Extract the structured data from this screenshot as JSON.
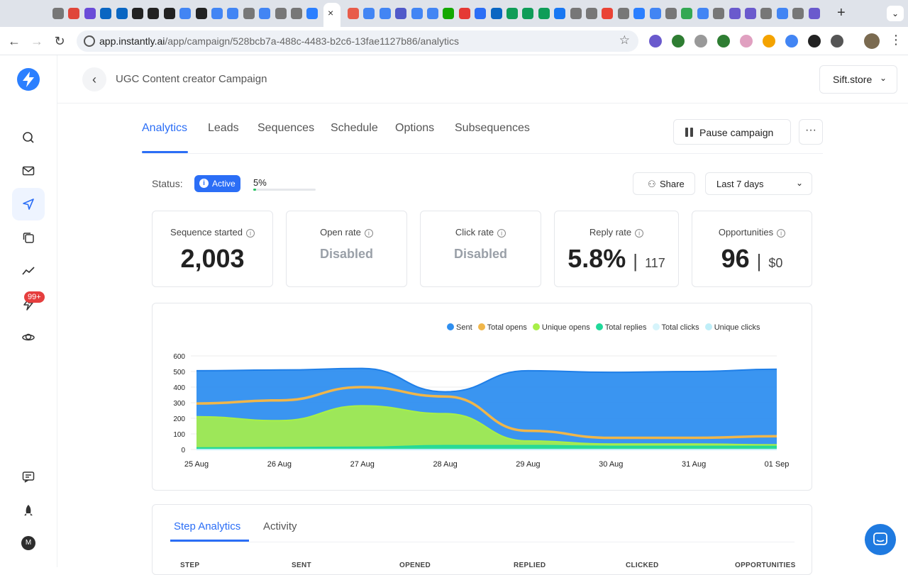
{
  "browser": {
    "url_host": "app.instantly.ai",
    "url_path": "/app/campaign/528bcb7a-488c-4483-b2c6-13fae1127b86/analytics",
    "new_tab_label": "+",
    "tab_close": "×"
  },
  "sidebar": {
    "notification_badge": "99+",
    "user_initial": "M"
  },
  "header": {
    "back_label": "‹",
    "campaign_title": "UGC Content creator Campaign",
    "workspace": "Sift.store"
  },
  "tabs": [
    "Analytics",
    "Leads",
    "Sequences",
    "Schedule",
    "Options",
    "Subsequences"
  ],
  "actions": {
    "pause": "Pause campaign",
    "more": "···"
  },
  "status": {
    "label": "Status:",
    "value": "Active",
    "progress_text": "5%",
    "progress": 0.05,
    "share": "Share",
    "range": "Last 7 days"
  },
  "metrics": [
    {
      "title": "Sequence started",
      "value": "2,003"
    },
    {
      "title": "Open rate",
      "value": "Disabled"
    },
    {
      "title": "Click rate",
      "value": "Disabled"
    },
    {
      "title": "Reply rate",
      "value": "5.8%",
      "sub": "117"
    },
    {
      "title": "Opportunities",
      "value": "96",
      "sub": "$0"
    }
  ],
  "colors": {
    "accent": "#2b6ef6",
    "sent": "#2f8ff0",
    "total_opens": "#f0b64a",
    "unique_opens": "#a8ef48",
    "total_replies": "#20d99a",
    "total_clicks": "#d6f4fb",
    "unique_clicks": "#bfeef8"
  },
  "chart_data": {
    "type": "area",
    "x": [
      "25 Aug",
      "26 Aug",
      "27 Aug",
      "28 Aug",
      "29 Aug",
      "30 Aug",
      "31 Aug",
      "01 Sep"
    ],
    "ylim": [
      0,
      600
    ],
    "yticks": [
      0,
      100,
      200,
      300,
      400,
      500,
      600
    ],
    "grid": true,
    "legend_position": "top-right",
    "series": [
      {
        "name": "Sent",
        "values": [
          505,
          510,
          520,
          370,
          505,
          495,
          500,
          515
        ]
      },
      {
        "name": "Total opens",
        "values": [
          295,
          315,
          400,
          340,
          120,
          75,
          75,
          85
        ]
      },
      {
        "name": "Unique opens",
        "values": [
          210,
          185,
          280,
          230,
          55,
          35,
          35,
          30
        ]
      },
      {
        "name": "Total replies",
        "values": [
          10,
          12,
          15,
          25,
          25,
          20,
          20,
          20
        ]
      },
      {
        "name": "Total clicks",
        "values": [
          0,
          0,
          0,
          0,
          0,
          0,
          0,
          0
        ]
      },
      {
        "name": "Unique clicks",
        "values": [
          0,
          0,
          0,
          0,
          0,
          0,
          0,
          0
        ]
      }
    ]
  },
  "step_tabs": [
    "Step Analytics",
    "Activity"
  ],
  "table_columns": [
    "STEP",
    "SENT",
    "OPENED",
    "REPLIED",
    "CLICKED",
    "OPPORTUNITIES"
  ]
}
